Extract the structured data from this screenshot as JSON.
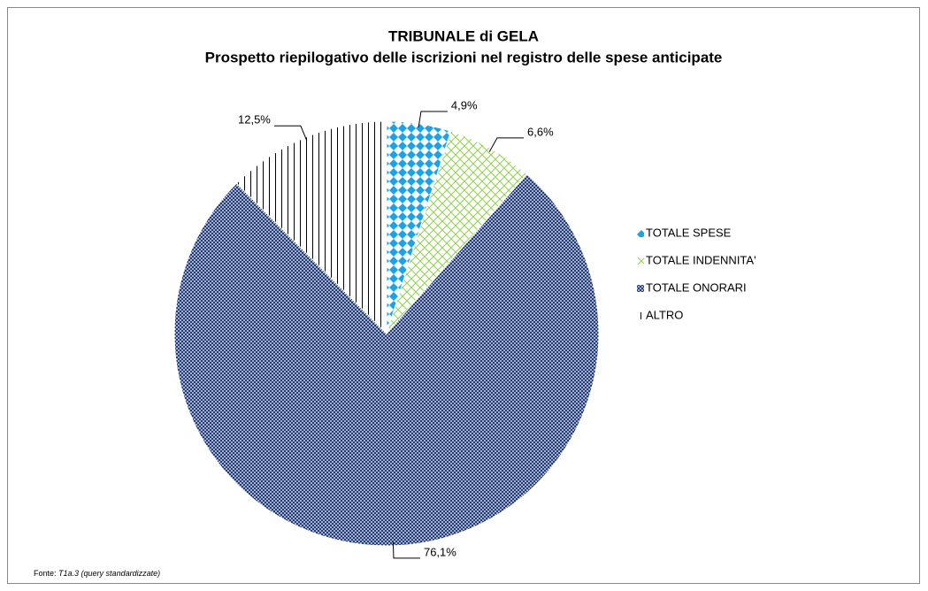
{
  "chart_data": {
    "type": "pie",
    "title": "TRIBUNALE di GELA",
    "subtitle": "Prospetto riepilogativo delle iscrizioni nel registro delle spese anticipate",
    "categories": [
      "TOTALE SPESE",
      "TOTALE INDENNITA'",
      "TOTALE ONORARI",
      "ALTRO"
    ],
    "values": [
      4.9,
      6.6,
      76.1,
      12.5
    ],
    "value_labels": [
      "4,9%",
      "6,6%",
      "76,1%",
      "12,5%"
    ],
    "colors": [
      "#1aa3e8",
      "#92d050",
      "#1f3a78",
      "#000000"
    ],
    "patterns": [
      "diamond",
      "crosshatch",
      "crosshatch",
      "vertical"
    ],
    "legend": "right",
    "source": {
      "label": "Fonte:",
      "text": "T1a.3 (query standardizzate)"
    }
  }
}
